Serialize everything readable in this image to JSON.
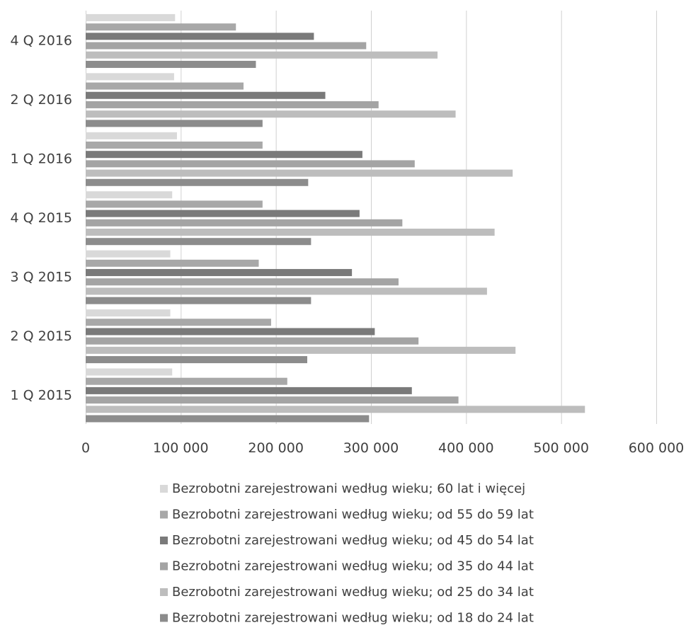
{
  "chart_data": {
    "type": "bar",
    "orientation": "horizontal",
    "title": "",
    "xlabel": "",
    "ylabel": "",
    "xlim": [
      0,
      600000
    ],
    "x_ticks": [
      0,
      100000,
      200000,
      300000,
      400000,
      500000,
      600000
    ],
    "x_tick_labels": [
      "0",
      "100 000",
      "200 000",
      "300 000",
      "400 000",
      "500 000",
      "600 000"
    ],
    "grid": "vertical",
    "legend_position": "bottom",
    "categories": [
      "1 Q 2015",
      "2 Q 2015",
      "3 Q 2015",
      "4 Q 2015",
      "1 Q 2016",
      "2 Q 2016",
      "4 Q 2016"
    ],
    "series": [
      {
        "name": "Bezrobotni zarejestrowani według wieku; od 18 do 24 lat",
        "color": "#8c8c8c",
        "values": [
          298000,
          233000,
          237000,
          237000,
          234000,
          186000,
          179000
        ]
      },
      {
        "name": "Bezrobotni zarejestrowani według wieku; od 25 do 34 lat",
        "color": "#bdbdbd",
        "values": [
          525000,
          452000,
          422000,
          430000,
          449000,
          389000,
          370000
        ]
      },
      {
        "name": "Bezrobotni zarejestrowani według wieku; od 35 do 44 lat",
        "color": "#a4a4a4",
        "values": [
          392000,
          350000,
          329000,
          333000,
          346000,
          308000,
          295000
        ]
      },
      {
        "name": "Bezrobotni zarejestrowani według wieku; od 45 do 54 lat",
        "color": "#7a7a7a",
        "values": [
          343000,
          304000,
          280000,
          288000,
          291000,
          252000,
          240000
        ]
      },
      {
        "name": "Bezrobotni zarejestrowani według wieku; od 55 do 59 lat",
        "color": "#a8a8a8",
        "values": [
          212000,
          195000,
          182000,
          186000,
          186000,
          166000,
          158000
        ]
      },
      {
        "name": "Bezrobotni zarejestrowani według wieku; 60 lat i więcej",
        "color": "#d9d9d9",
        "values": [
          91000,
          89000,
          89000,
          91000,
          96000,
          93000,
          94000
        ]
      }
    ],
    "legend_order": [
      5,
      4,
      3,
      2,
      1,
      0
    ]
  }
}
